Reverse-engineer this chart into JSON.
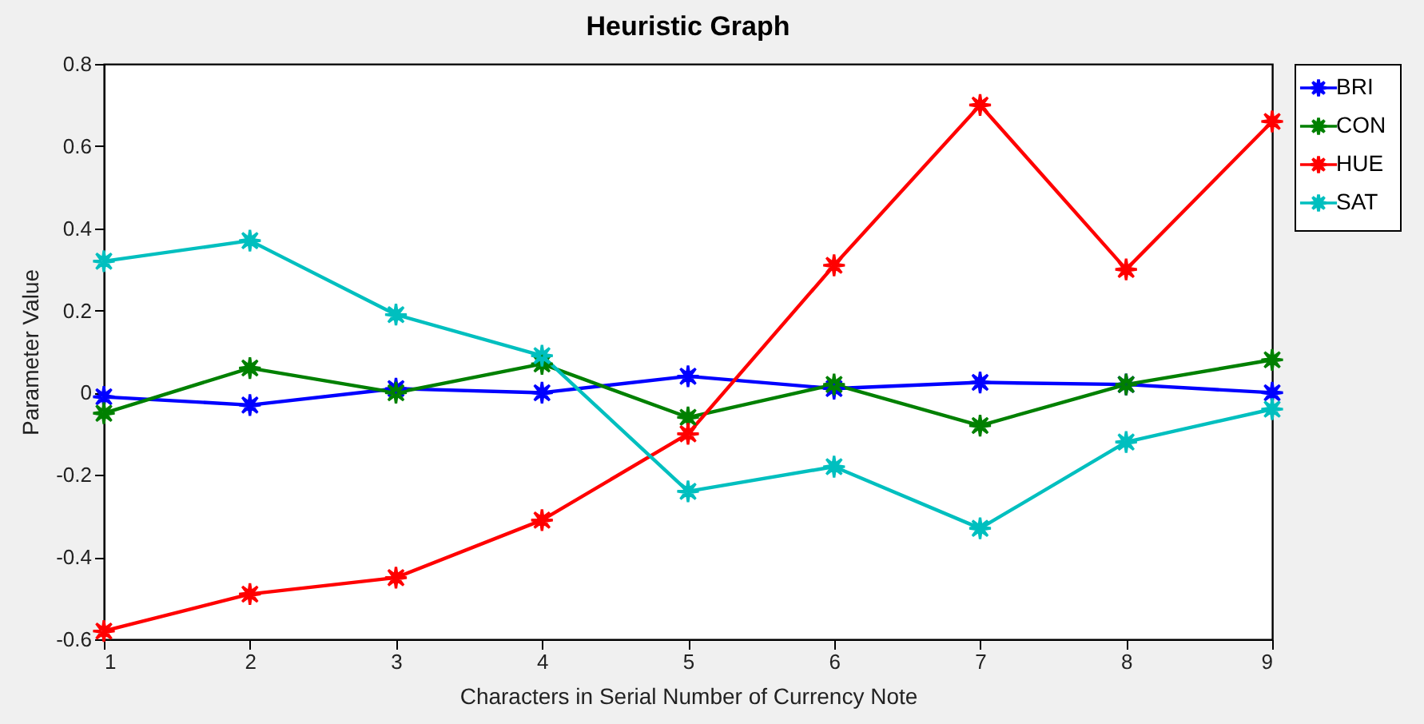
{
  "chart_data": {
    "type": "line",
    "title": "Heuristic Graph",
    "xlabel": "Characters in Serial Number of Currency Note",
    "ylabel": "Parameter Value",
    "x": [
      1,
      2,
      3,
      4,
      5,
      6,
      7,
      8,
      9
    ],
    "series": [
      {
        "name": "BRI",
        "color": "#0000ff",
        "values": [
          -0.01,
          -0.03,
          0.01,
          0.0,
          0.04,
          0.01,
          0.025,
          0.02,
          0.0
        ]
      },
      {
        "name": "CON",
        "color": "#008000",
        "values": [
          -0.05,
          0.06,
          0.0,
          0.07,
          -0.06,
          0.02,
          -0.08,
          0.02,
          0.08
        ]
      },
      {
        "name": "HUE",
        "color": "#ff0000",
        "values": [
          -0.58,
          -0.49,
          -0.45,
          -0.31,
          -0.1,
          0.31,
          0.7,
          0.3,
          0.66
        ]
      },
      {
        "name": "SAT",
        "color": "#00bfbf",
        "values": [
          0.32,
          0.37,
          0.19,
          0.09,
          -0.24,
          -0.18,
          -0.33,
          -0.12,
          -0.04
        ]
      }
    ],
    "xlim": [
      1,
      9
    ],
    "xticks": [
      1,
      2,
      3,
      4,
      5,
      6,
      7,
      8,
      9
    ],
    "ylim": [
      -0.6,
      0.8
    ],
    "yticks": [
      -0.6,
      -0.4,
      -0.2,
      0,
      0.2,
      0.4,
      0.6,
      0.8
    ],
    "grid": false,
    "legend": "top right",
    "marker": "star",
    "line_style": "solid"
  }
}
